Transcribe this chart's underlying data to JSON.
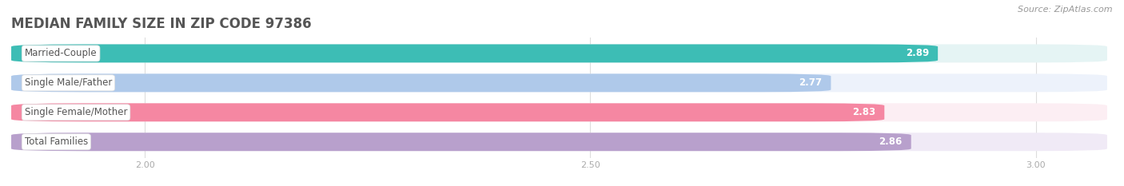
{
  "title": "MEDIAN FAMILY SIZE IN ZIP CODE 97386",
  "source": "Source: ZipAtlas.com",
  "categories": [
    "Married-Couple",
    "Single Male/Father",
    "Single Female/Mother",
    "Total Families"
  ],
  "values": [
    2.89,
    2.77,
    2.83,
    2.86
  ],
  "bar_colors": [
    "#3dbdb5",
    "#afc9ea",
    "#f587a2",
    "#b8a0cc"
  ],
  "bar_bg_colors": [
    "#e5f4f4",
    "#edf2fb",
    "#fceef3",
    "#f0eaf6"
  ],
  "xlim": [
    1.85,
    3.08
  ],
  "xticks": [
    2.0,
    2.5,
    3.0
  ],
  "bar_height": 0.62,
  "bar_gap": 0.18,
  "title_fontsize": 12,
  "label_fontsize": 8.5,
  "value_fontsize": 8.5,
  "source_fontsize": 8,
  "bg_color": "#ffffff",
  "title_color": "#555555",
  "tick_color": "#aaaaaa",
  "grid_color": "#dddddd"
}
